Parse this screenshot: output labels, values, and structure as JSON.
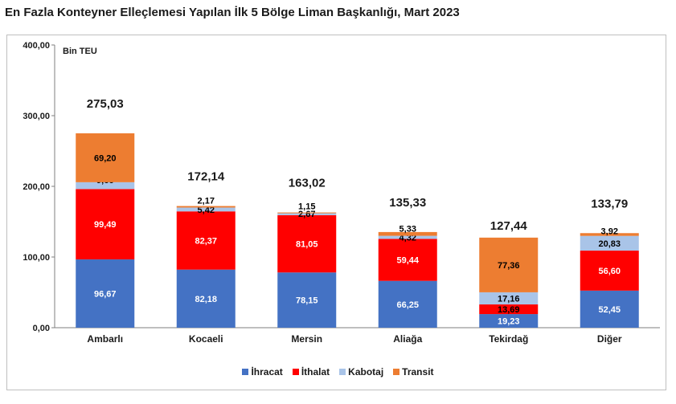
{
  "title": "En Fazla Konteyner Elleçlemesi Yapılan İlk 5 Bölge Liman Başkanlığı, Mart 2023",
  "chart_data": {
    "type": "bar",
    "stacked": true,
    "title": "En Fazla Konteyner Elleçlemesi Yapılan İlk 5 Bölge Liman Başkanlığı, Mart 2023",
    "unit_label": "Bin TEU",
    "xlabel": "",
    "ylabel": "",
    "ylim": [
      0,
      400
    ],
    "yticks": [
      0,
      100,
      200,
      300,
      400
    ],
    "ytick_labels": [
      "0,00",
      "100,00",
      "200,00",
      "300,00",
      "400,00"
    ],
    "grid": false,
    "legend_position": "bottom",
    "categories": [
      "Ambarlı",
      "Kocaeli",
      "Mersin",
      "Aliağa",
      "Tekirdağ",
      "Diğer"
    ],
    "totals": [
      275.03,
      172.14,
      163.02,
      135.33,
      127.44,
      133.79
    ],
    "total_labels": [
      "275,03",
      "172,14",
      "163,02",
      "135,33",
      "127,44",
      "133,79"
    ],
    "series": [
      {
        "name": "İhracat",
        "color": "#4472c4",
        "values": [
          96.67,
          82.18,
          78.15,
          66.25,
          19.23,
          52.45
        ],
        "labels": [
          "96,67",
          "82,18",
          "78,15",
          "66,25",
          "19,23",
          "52,45"
        ]
      },
      {
        "name": "İthalat",
        "color": "#ff0000",
        "values": [
          99.49,
          82.37,
          81.05,
          59.44,
          13.69,
          56.6
        ],
        "labels": [
          "99,49",
          "82,37",
          "81,05",
          "59,44",
          "13,69",
          "56,60"
        ]
      },
      {
        "name": "Kabotaj",
        "color": "#a9c4e8",
        "values": [
          9.66,
          5.42,
          2.67,
          4.32,
          17.16,
          20.83
        ],
        "labels": [
          "9,66",
          "5,42",
          "2,67",
          "4,32",
          "17,16",
          "20,83"
        ]
      },
      {
        "name": "Transit",
        "color": "#ed7d31",
        "values": [
          69.2,
          2.17,
          1.15,
          5.33,
          77.36,
          3.92
        ],
        "labels": [
          "69,20",
          "2,17",
          "1,15",
          "5,33",
          "77,36",
          "3,92"
        ]
      }
    ]
  }
}
